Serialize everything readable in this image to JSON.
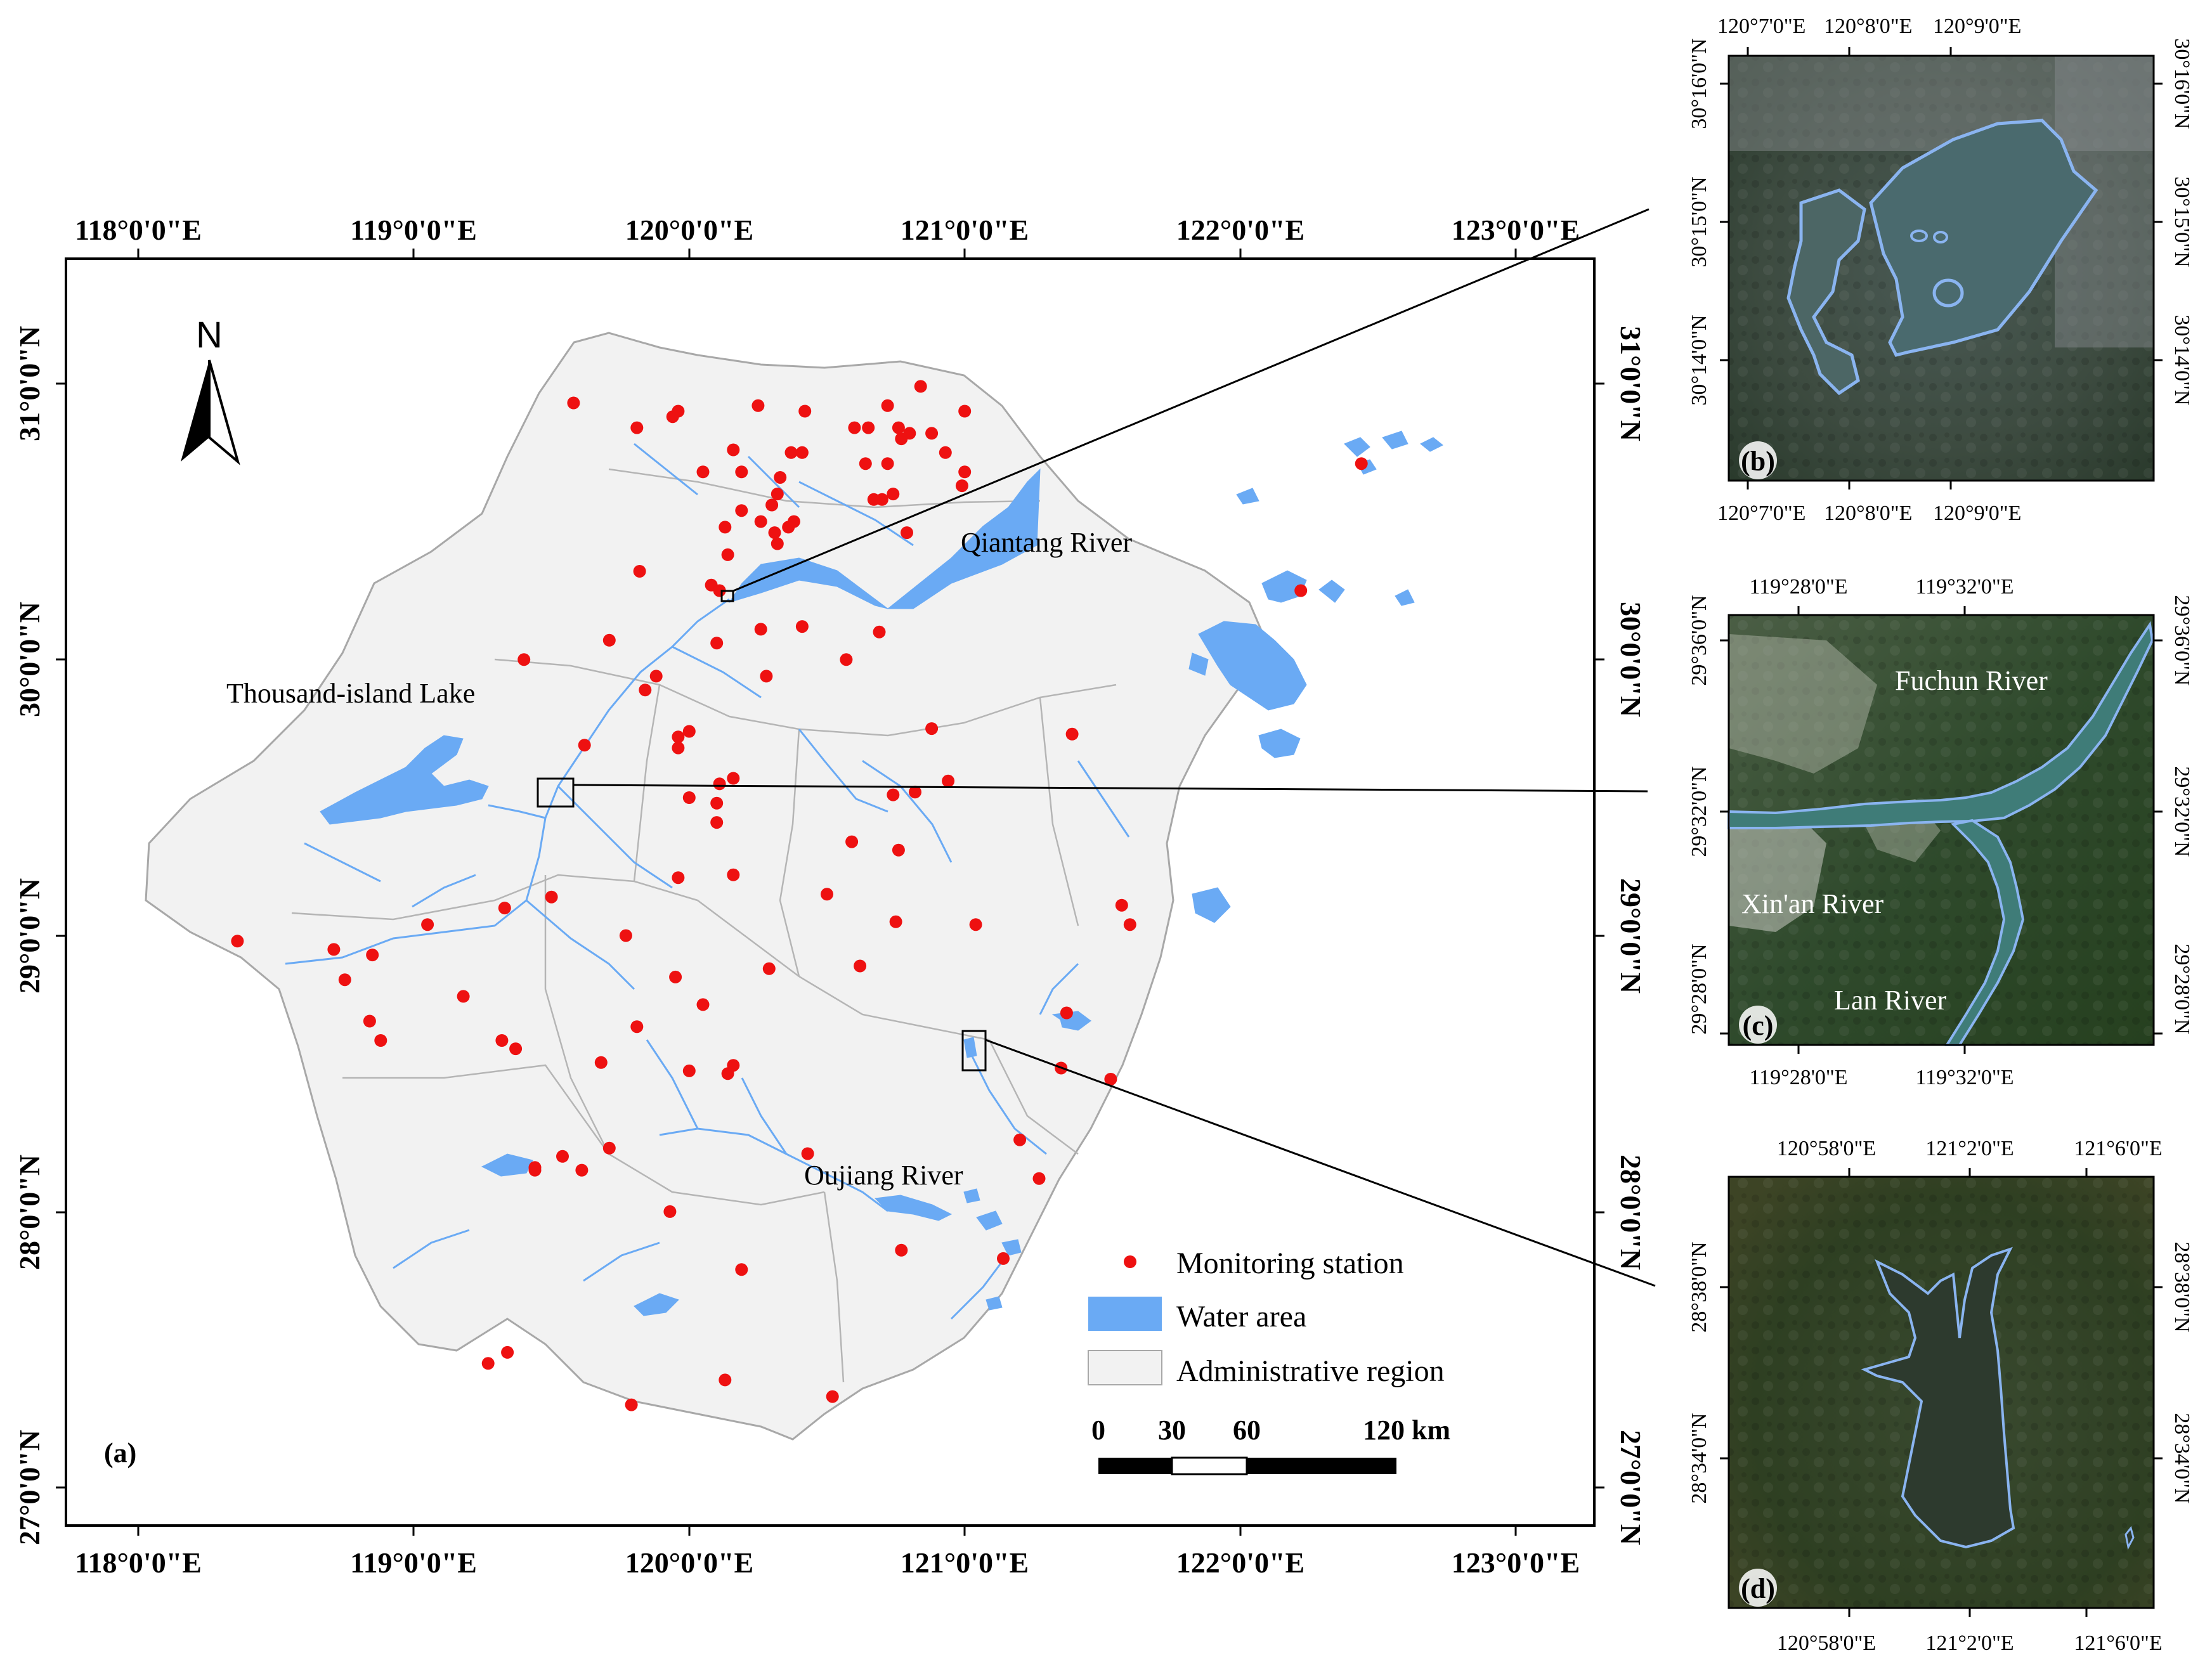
{
  "colors": {
    "water": "#6aaaf4",
    "admin_fill": "#f2f2f2",
    "admin_border": "#a8a8a8",
    "station": "#ee1111",
    "frame": "#000000"
  },
  "main_map": {
    "panel_tag": "(a)",
    "north_label": "N",
    "x_ticks": [
      "118°0'0\"E",
      "119°0'0\"E",
      "120°0'0\"E",
      "121°0'0\"E",
      "122°0'0\"E",
      "123°0'0\"E"
    ],
    "y_ticks": [
      "31°0'0\"N",
      "30°0'0\"N",
      "29°0'0\"N",
      "28°0'0\"N",
      "27°0'0\"N"
    ],
    "places": {
      "qiantang": "Qiantang River",
      "thousand_island": "Thousand-island Lake",
      "oujiang": "Oujiang River"
    },
    "legend": {
      "station": "Monitoring station",
      "water": "Water area",
      "admin": "Administrative region"
    },
    "scale_bar": {
      "labels": [
        "0",
        "30",
        "60",
        "120 km"
      ]
    },
    "stations": [
      [
        119.58,
        30.93
      ],
      [
        119.81,
        30.84
      ],
      [
        119.94,
        30.88
      ],
      [
        119.96,
        30.9
      ],
      [
        120.25,
        30.92
      ],
      [
        120.42,
        30.9
      ],
      [
        120.6,
        30.84
      ],
      [
        120.72,
        30.92
      ],
      [
        120.84,
        30.99
      ],
      [
        121.0,
        30.9
      ],
      [
        120.65,
        30.84
      ],
      [
        120.76,
        30.84
      ],
      [
        120.8,
        30.82
      ],
      [
        120.88,
        30.82
      ],
      [
        120.37,
        30.75
      ],
      [
        120.41,
        30.75
      ],
      [
        120.16,
        30.76
      ],
      [
        120.05,
        30.68
      ],
      [
        120.19,
        30.68
      ],
      [
        120.33,
        30.66
      ],
      [
        120.77,
        30.8
      ],
      [
        120.93,
        30.75
      ],
      [
        121.0,
        30.68
      ],
      [
        120.99,
        30.63
      ],
      [
        120.64,
        30.71
      ],
      [
        120.72,
        30.71
      ],
      [
        120.7,
        30.58
      ],
      [
        120.74,
        30.6
      ],
      [
        120.67,
        30.58
      ],
      [
        120.32,
        30.6
      ],
      [
        120.3,
        30.56
      ],
      [
        120.38,
        30.5
      ],
      [
        120.13,
        30.48
      ],
      [
        120.19,
        30.54
      ],
      [
        120.26,
        30.5
      ],
      [
        120.31,
        30.46
      ],
      [
        120.36,
        30.48
      ],
      [
        120.32,
        30.42
      ],
      [
        120.14,
        30.38
      ],
      [
        119.82,
        30.32
      ],
      [
        120.08,
        30.27
      ],
      [
        120.11,
        30.25
      ],
      [
        120.79,
        30.46
      ],
      [
        120.26,
        30.11
      ],
      [
        120.41,
        30.12
      ],
      [
        120.69,
        30.1
      ],
      [
        120.1,
        30.06
      ],
      [
        119.4,
        30.0
      ],
      [
        119.71,
        30.07
      ],
      [
        120.57,
        30.0
      ],
      [
        119.84,
        29.89
      ],
      [
        119.88,
        29.94
      ],
      [
        120.28,
        29.94
      ],
      [
        119.62,
        29.69
      ],
      [
        120.0,
        29.74
      ],
      [
        119.96,
        29.72
      ],
      [
        119.96,
        29.68
      ],
      [
        120.88,
        29.75
      ],
      [
        121.39,
        29.73
      ],
      [
        120.11,
        29.55
      ],
      [
        120.16,
        29.57
      ],
      [
        120.0,
        29.5
      ],
      [
        120.1,
        29.48
      ],
      [
        120.1,
        29.41
      ],
      [
        120.94,
        29.56
      ],
      [
        120.74,
        29.51
      ],
      [
        120.82,
        29.52
      ],
      [
        120.59,
        29.34
      ],
      [
        120.76,
        29.31
      ],
      [
        119.5,
        29.14
      ],
      [
        119.33,
        29.1
      ],
      [
        119.05,
        29.04
      ],
      [
        119.96,
        29.21
      ],
      [
        120.16,
        29.22
      ],
      [
        120.5,
        29.15
      ],
      [
        120.75,
        29.05
      ],
      [
        121.04,
        29.04
      ],
      [
        121.57,
        29.11
      ],
      [
        121.6,
        29.04
      ],
      [
        119.77,
        29.0
      ],
      [
        118.36,
        28.98
      ],
      [
        118.71,
        28.95
      ],
      [
        118.75,
        28.84
      ],
      [
        118.85,
        28.93
      ],
      [
        118.84,
        28.69
      ],
      [
        118.88,
        28.62
      ],
      [
        119.18,
        28.78
      ],
      [
        119.95,
        28.85
      ],
      [
        120.29,
        28.88
      ],
      [
        120.62,
        28.89
      ],
      [
        120.05,
        28.75
      ],
      [
        119.81,
        28.67
      ],
      [
        119.32,
        28.62
      ],
      [
        119.37,
        28.59
      ],
      [
        119.68,
        28.54
      ],
      [
        120.0,
        28.51
      ],
      [
        120.16,
        28.53
      ],
      [
        120.14,
        28.5
      ],
      [
        121.37,
        28.72
      ],
      [
        121.35,
        28.52
      ],
      [
        121.53,
        28.48
      ],
      [
        119.44,
        28.15
      ],
      [
        119.44,
        28.16
      ],
      [
        119.54,
        28.2
      ],
      [
        119.61,
        28.15
      ],
      [
        119.71,
        28.23
      ],
      [
        120.43,
        28.21
      ],
      [
        121.2,
        28.26
      ],
      [
        121.27,
        28.12
      ],
      [
        119.93,
        28.0
      ],
      [
        120.77,
        27.86
      ],
      [
        121.14,
        27.83
      ],
      [
        120.19,
        27.79
      ],
      [
        119.27,
        27.45
      ],
      [
        119.34,
        27.49
      ],
      [
        119.79,
        27.3
      ],
      [
        120.13,
        27.39
      ],
      [
        120.52,
        27.33
      ],
      [
        122.22,
        30.25
      ],
      [
        122.44,
        30.71
      ]
    ]
  },
  "inset_b": {
    "panel_tag": "(b)",
    "x_ticks": [
      "120°7'0\"E",
      "120°8'0\"E",
      "120°9'0\"E"
    ],
    "y_ticks": [
      "30°16'0\"N",
      "30°15'0\"N",
      "30°14'0\"N"
    ]
  },
  "inset_c": {
    "panel_tag": "(c)",
    "x_ticks": [
      "119°28'0\"E",
      "119°32'0\"E"
    ],
    "y_ticks": [
      "29°36'0\"N",
      "29°32'0\"N",
      "29°28'0\"N"
    ],
    "places": {
      "fuchun": "Fuchun River",
      "xinan": "Xin'an River",
      "lan": "Lan River"
    }
  },
  "inset_d": {
    "panel_tag": "(d)",
    "x_ticks": [
      "120°58'0\"E",
      "121°2'0\"E",
      "121°6'0\"E"
    ],
    "y_ticks": [
      "28°38'0\"N",
      "28°34'0\"N"
    ]
  }
}
